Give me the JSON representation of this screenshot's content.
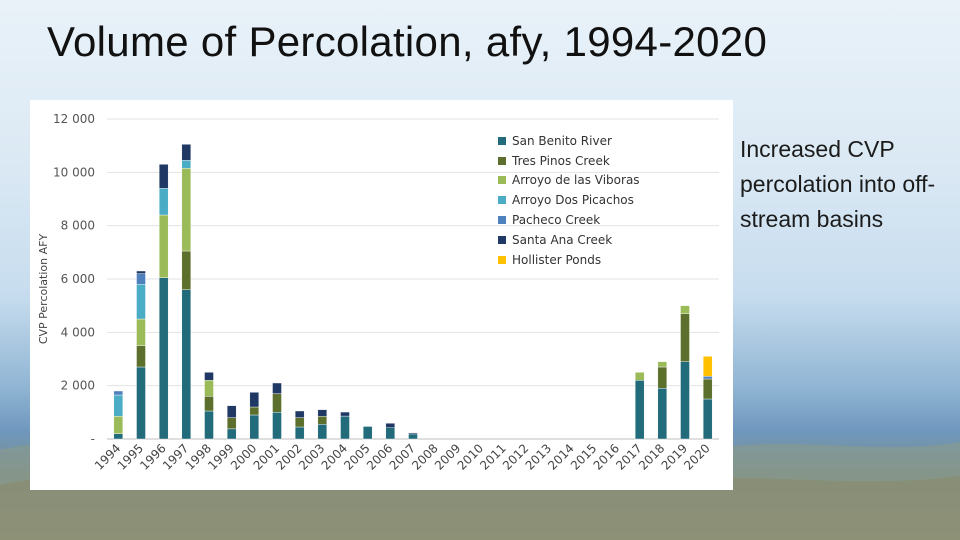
{
  "slide": {
    "title": "Volume of Percolation, afy, 1994-2020",
    "note": "Increased CVP percolation into off-stream basins"
  },
  "chart_data": {
    "type": "bar",
    "stacked": true,
    "title": "",
    "xlabel": "",
    "ylabel": "CVP Percolation AFY",
    "ylim": [
      0,
      12000
    ],
    "yticks": [
      0,
      2000,
      4000,
      6000,
      8000,
      10000,
      12000
    ],
    "ytick_labels": [
      "-",
      "2 000",
      "4 000",
      "6 000",
      "8 000",
      "10 000",
      "12 000"
    ],
    "grid": true,
    "legend_position": "top-right",
    "categories": [
      "1994",
      "1995",
      "1996",
      "1997",
      "1998",
      "1999",
      "2000",
      "2001",
      "2002",
      "2003",
      "2004",
      "2005",
      "2006",
      "2007",
      "2008",
      "2009",
      "2010",
      "2011",
      "2012",
      "2013",
      "2014",
      "2015",
      "2016",
      "2017",
      "2018",
      "2019",
      "2020"
    ],
    "series": [
      {
        "name": "San Benito River",
        "color": "#226b7a",
        "values": [
          200,
          2700,
          6050,
          5600,
          1050,
          380,
          900,
          1000,
          450,
          550,
          860,
          470,
          420,
          190,
          0,
          0,
          0,
          0,
          0,
          0,
          0,
          0,
          0,
          2200,
          1900,
          2900,
          1500
        ]
      },
      {
        "name": "Tres Pinos Creek",
        "color": "#5c6f2c",
        "values": [
          0,
          800,
          0,
          1450,
          550,
          420,
          300,
          700,
          350,
          300,
          0,
          0,
          0,
          0,
          0,
          0,
          0,
          0,
          0,
          0,
          0,
          0,
          0,
          0,
          800,
          1800,
          750
        ]
      },
      {
        "name": "Arroyo de las Viboras",
        "color": "#9bbb59",
        "values": [
          650,
          1000,
          2350,
          3100,
          600,
          0,
          0,
          0,
          0,
          0,
          0,
          0,
          0,
          0,
          0,
          0,
          0,
          0,
          0,
          0,
          0,
          0,
          0,
          300,
          200,
          300,
          0
        ]
      },
      {
        "name": "Arroyo Dos Picachos",
        "color": "#4bacc6",
        "values": [
          800,
          1300,
          1000,
          300,
          0,
          0,
          0,
          0,
          0,
          0,
          0,
          0,
          0,
          0,
          0,
          0,
          0,
          0,
          0,
          0,
          0,
          0,
          0,
          0,
          0,
          0,
          0
        ]
      },
      {
        "name": "Pacheco Creek",
        "color": "#4f81bd",
        "values": [
          150,
          400,
          0,
          0,
          0,
          0,
          0,
          0,
          0,
          0,
          0,
          0,
          0,
          0,
          0,
          0,
          0,
          0,
          0,
          0,
          0,
          0,
          0,
          0,
          0,
          0,
          100
        ]
      },
      {
        "name": "Santa Ana Creek",
        "color": "#1f3864",
        "values": [
          0,
          100,
          900,
          600,
          300,
          450,
          550,
          400,
          250,
          250,
          150,
          0,
          170,
          40,
          0,
          0,
          0,
          0,
          0,
          0,
          0,
          0,
          0,
          0,
          0,
          0,
          0
        ]
      },
      {
        "name": "Hollister Ponds",
        "color": "#ffc000",
        "values": [
          0,
          0,
          0,
          0,
          0,
          0,
          0,
          0,
          0,
          0,
          0,
          0,
          0,
          0,
          0,
          0,
          0,
          0,
          0,
          0,
          0,
          0,
          0,
          0,
          0,
          0,
          750
        ]
      }
    ]
  }
}
